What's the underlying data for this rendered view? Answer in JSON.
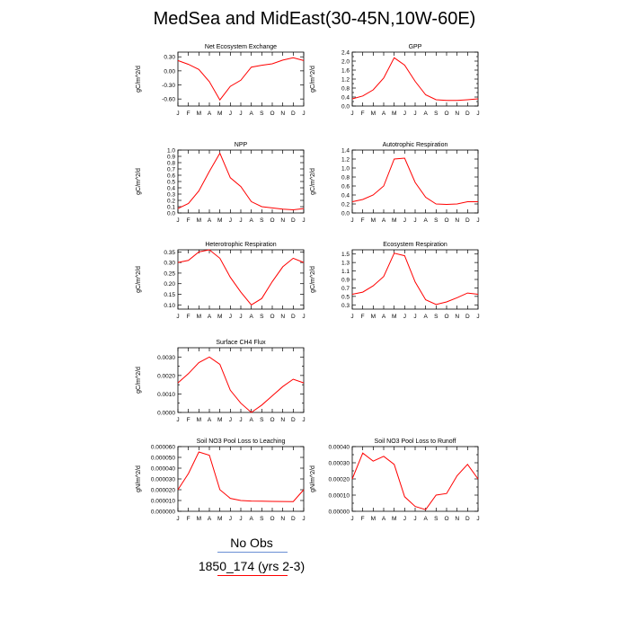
{
  "title": "MedSea and MidEast(30-45N,10W-60E)",
  "legend": {
    "obs_label": "No Obs",
    "model_label": "1850_174 (yrs 2-3)",
    "obs_color": "#6a8fd4",
    "model_color": "#ff0000"
  },
  "months": [
    "J",
    "F",
    "M",
    "A",
    "M",
    "J",
    "J",
    "A",
    "S",
    "O",
    "N",
    "D",
    "J"
  ],
  "chart_data": [
    {
      "type": "line",
      "title": "Net Ecosystem Exchange",
      "ylabel": "gC/m^2/d",
      "ylim": [
        -0.75,
        0.4
      ],
      "yticks": [
        -0.6,
        -0.3,
        0.0,
        0.3
      ],
      "yticklabels": [
        "-0.60",
        "-0.30",
        "0.00",
        "0.30"
      ],
      "series": [
        {
          "values": [
            0.22,
            0.14,
            0.03,
            -0.23,
            -0.62,
            -0.33,
            -0.2,
            0.08,
            0.12,
            0.15,
            0.23,
            0.28,
            0.22
          ]
        }
      ]
    },
    {
      "type": "line",
      "title": "GPP",
      "ylabel": "gC/m^2/d",
      "ylim": [
        0,
        2.4
      ],
      "yticks": [
        0,
        0.2,
        0.4,
        0.6,
        0.8,
        1.0,
        1.2,
        1.4,
        1.6,
        1.8,
        2.0,
        2.2,
        2.4
      ],
      "yticklabels": [
        "0.0",
        "",
        "0.4",
        "",
        "0.8",
        "",
        "1.2",
        "",
        "1.6",
        "",
        "2.0",
        "",
        "2.4"
      ],
      "series": [
        {
          "values": [
            0.32,
            0.45,
            0.72,
            1.25,
            2.15,
            1.82,
            1.1,
            0.5,
            0.28,
            0.25,
            0.25,
            0.28,
            0.32
          ]
        }
      ]
    },
    {
      "type": "line",
      "title": "NPP",
      "ylabel": "gC/m^2/d",
      "ylim": [
        0,
        1.0
      ],
      "yticks": [
        0,
        0.1,
        0.2,
        0.3,
        0.4,
        0.5,
        0.6,
        0.7,
        0.8,
        0.9,
        1.0
      ],
      "yticklabels": [
        "0.0",
        "0.1",
        "0.2",
        "0.3",
        "0.4",
        "0.5",
        "0.6",
        "0.7",
        "0.8",
        "0.9",
        "1.0"
      ],
      "series": [
        {
          "values": [
            0.07,
            0.15,
            0.35,
            0.66,
            0.95,
            0.56,
            0.42,
            0.18,
            0.1,
            0.08,
            0.06,
            0.05,
            0.07
          ]
        }
      ]
    },
    {
      "type": "line",
      "title": "Autotrophic Respiration",
      "ylabel": "gC/m^2/d",
      "ylim": [
        0,
        1.4
      ],
      "yticks": [
        0,
        0.2,
        0.4,
        0.6,
        0.8,
        1.0,
        1.2,
        1.4
      ],
      "yticklabels": [
        "0.0",
        "0.2",
        "0.4",
        "0.6",
        "0.8",
        "1.0",
        "1.2",
        "1.4"
      ],
      "series": [
        {
          "values": [
            0.25,
            0.3,
            0.4,
            0.6,
            1.2,
            1.22,
            0.68,
            0.35,
            0.2,
            0.19,
            0.2,
            0.25,
            0.25
          ]
        }
      ]
    },
    {
      "type": "line",
      "title": "Heterotrophic Respiration",
      "ylabel": "gC/m^2/d",
      "ylim": [
        0.08,
        0.36
      ],
      "yticks": [
        0.1,
        0.15,
        0.2,
        0.25,
        0.3,
        0.35
      ],
      "yticklabels": [
        "0.10",
        "0.15",
        "0.20",
        "0.25",
        "0.30",
        "0.35"
      ],
      "series": [
        {
          "values": [
            0.3,
            0.31,
            0.35,
            0.36,
            0.32,
            0.23,
            0.16,
            0.1,
            0.13,
            0.21,
            0.28,
            0.32,
            0.3
          ]
        }
      ]
    },
    {
      "type": "line",
      "title": "Ecosystem Respiration",
      "ylabel": "gC/m^2/d",
      "ylim": [
        0.2,
        1.6
      ],
      "yticks": [
        0.3,
        0.5,
        0.7,
        0.9,
        1.1,
        1.3,
        1.5
      ],
      "yticklabels": [
        "0.3",
        "0.5",
        "0.7",
        "0.9",
        "1.1",
        "1.3",
        "1.5"
      ],
      "series": [
        {
          "values": [
            0.55,
            0.6,
            0.75,
            0.97,
            1.52,
            1.46,
            0.84,
            0.42,
            0.31,
            0.37,
            0.47,
            0.58,
            0.55
          ]
        }
      ]
    },
    {
      "type": "line",
      "title": "Surface CH4 Flux",
      "ylabel": "gC/m^2/d",
      "ylim": [
        0,
        0.0035
      ],
      "yticks": [
        0,
        0.0005,
        0.001,
        0.0015,
        0.002,
        0.0025,
        0.003
      ],
      "yticklabels": [
        "0.0000",
        "",
        "0.0010",
        "",
        "0.0020",
        "",
        "0.0030"
      ],
      "series": [
        {
          "values": [
            0.0016,
            0.0021,
            0.0027,
            0.003,
            0.0026,
            0.0012,
            0.0005,
            0.0,
            0.0004,
            0.0009,
            0.0014,
            0.0018,
            0.0016
          ]
        }
      ]
    },
    {
      "type": "line",
      "title": "Soil NO3 Pool Loss to Leaching",
      "ylabel": "gN/m^2/d",
      "ylim": [
        0,
        6e-05
      ],
      "yticks": [
        0,
        1e-05,
        2e-05,
        3e-05,
        4e-05,
        5e-05,
        6e-05
      ],
      "yticklabels": [
        "0.000000",
        "0.000010",
        "0.000020",
        "0.000030",
        "0.000040",
        "0.000050",
        "0.000060"
      ],
      "series": [
        {
          "values": [
            2e-05,
            3.5e-05,
            5.5e-05,
            5.2e-05,
            2e-05,
            1.2e-05,
            1e-05,
            9.5e-06,
            9.3e-06,
            9.2e-06,
            9.1e-06,
            9e-06,
            2e-05
          ]
        }
      ]
    },
    {
      "type": "line",
      "title": "Soil NO3 Pool Loss to Runoff",
      "ylabel": "gN/m^2/d",
      "ylim": [
        0,
        0.0004
      ],
      "yticks": [
        0,
        5e-05,
        0.0001,
        0.00015,
        0.0002,
        0.00025,
        0.0003,
        0.00035,
        0.0004
      ],
      "yticklabels": [
        "0.00000",
        "",
        "0.00010",
        "",
        "0.00020",
        "",
        "0.00030",
        "",
        "0.00040"
      ],
      "series": [
        {
          "values": [
            0.0002,
            0.00036,
            0.00031,
            0.00034,
            0.00029,
            9e-05,
            3e-05,
            1e-05,
            0.0001,
            0.00011,
            0.00022,
            0.00029,
            0.0002
          ]
        }
      ]
    }
  ]
}
